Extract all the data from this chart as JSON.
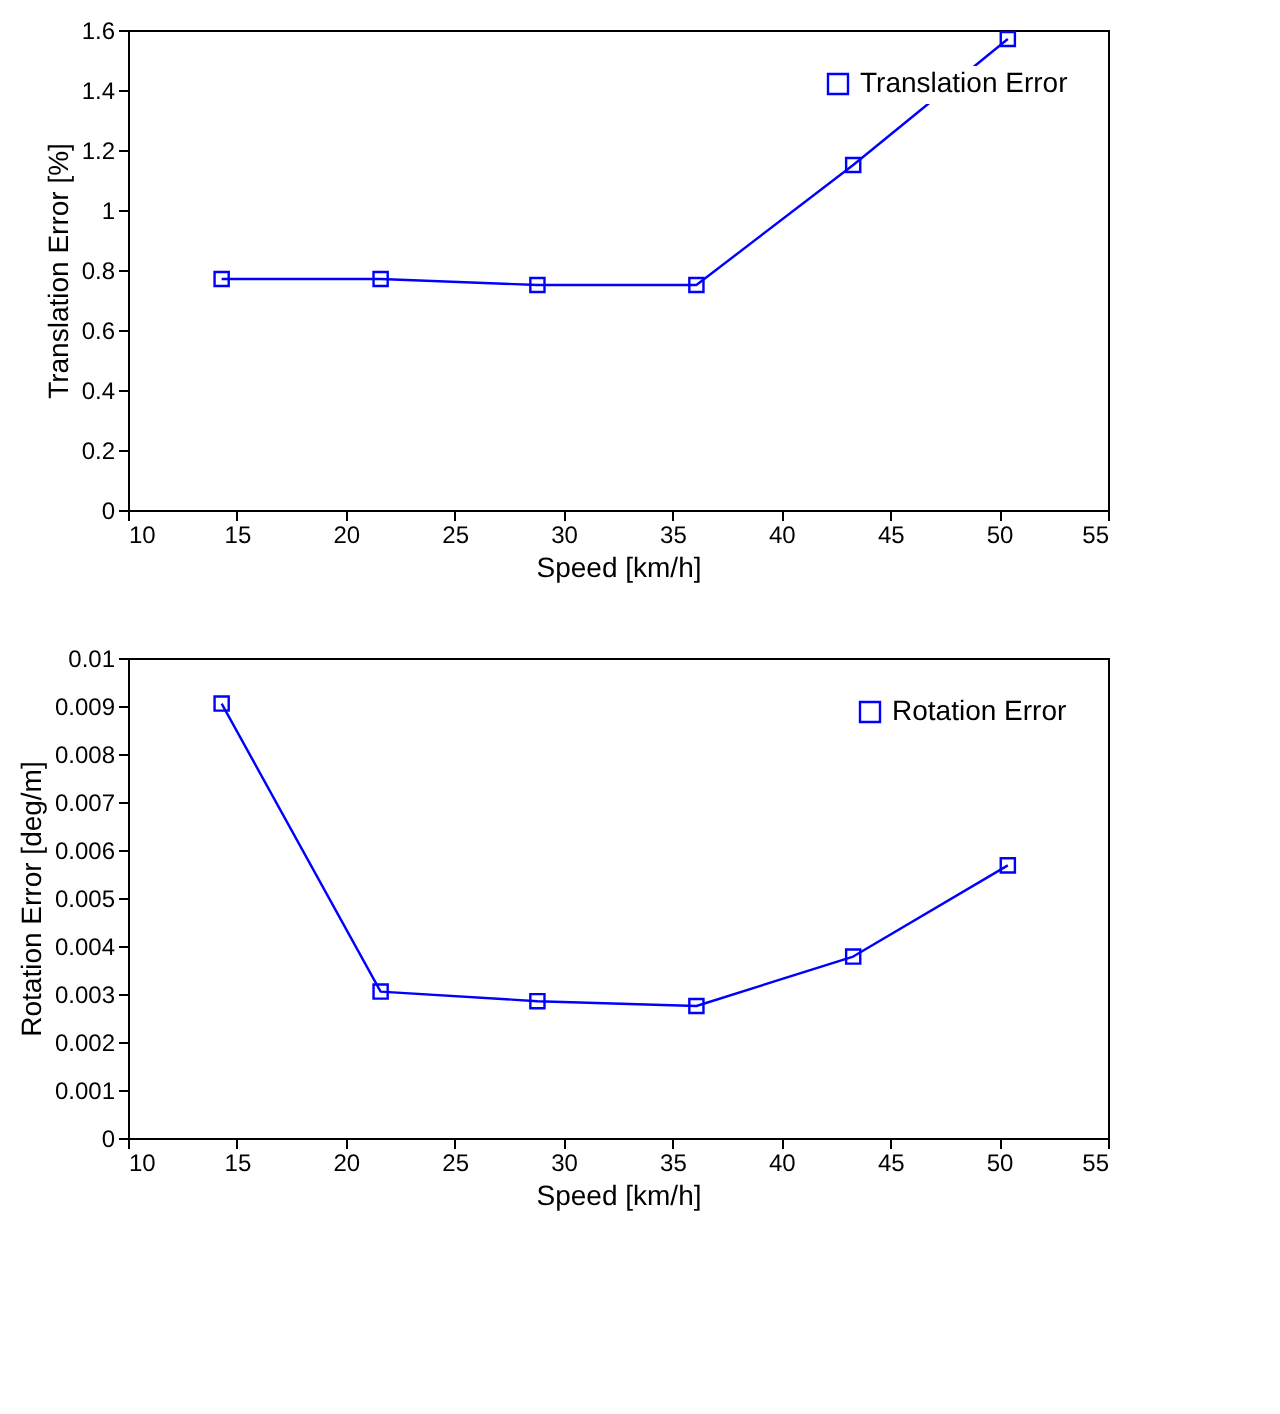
{
  "chart_data": [
    {
      "type": "line",
      "xlabel": "Speed [km/h]",
      "ylabel": "Translation Error [%]",
      "x": [
        14.3,
        21.6,
        28.8,
        36.1,
        43.3,
        50.4
      ],
      "series": [
        {
          "name": "Translation Error",
          "color": "#0000ff",
          "values": [
            0.77,
            0.77,
            0.75,
            0.75,
            1.15,
            1.57
          ]
        }
      ],
      "xlim": [
        10,
        55
      ],
      "xticks": [
        10,
        15,
        20,
        25,
        30,
        35,
        40,
        45,
        50,
        55
      ],
      "ylim": [
        0,
        1.6
      ],
      "yticks": [
        0,
        0.2,
        0.4,
        0.6,
        0.8,
        1,
        1.2,
        1.4,
        1.6
      ],
      "grid": false,
      "legend": "top right",
      "marker": "square",
      "line_style": "solid"
    },
    {
      "type": "line",
      "xlabel": "Speed [km/h]",
      "ylabel": "Rotation Error [deg/m]",
      "x": [
        14.3,
        21.6,
        28.8,
        36.1,
        43.3,
        50.4
      ],
      "series": [
        {
          "name": "Rotation Error",
          "color": "#0000ff",
          "values": [
            0.00905,
            0.00305,
            0.00285,
            0.00275,
            0.00378,
            0.00568
          ]
        }
      ],
      "xlim": [
        10,
        55
      ],
      "xticks": [
        10,
        15,
        20,
        25,
        30,
        35,
        40,
        45,
        50,
        55
      ],
      "ylim": [
        0,
        0.01
      ],
      "yticks": [
        0,
        0.001,
        0.002,
        0.003,
        0.004,
        0.005,
        0.006,
        0.007,
        0.008,
        0.009,
        0.01
      ],
      "grid": false,
      "legend": "top right",
      "marker": "square",
      "line_style": "solid"
    }
  ]
}
